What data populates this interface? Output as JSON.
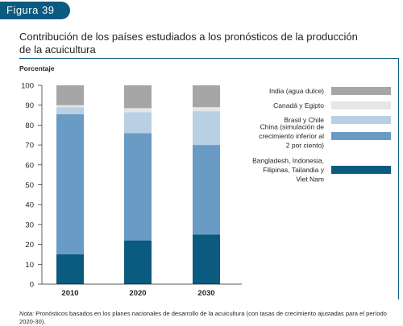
{
  "figure_label": "Figura 39",
  "title": "Contribución de los países estudiados a los pronósticos de la producción de la acuicultura",
  "note": {
    "prefix": "Nota:",
    "text": " Pronósticos basados en los planes nacionales de desarrollo de la acuicultura (con tasas de crecimiento ajustadas para el período 2020-30)."
  },
  "chart_data": {
    "type": "bar",
    "stacked": true,
    "ylabel": "Porcentaje",
    "ylim": [
      0,
      100
    ],
    "yticks": [
      0,
      10,
      20,
      30,
      40,
      50,
      60,
      70,
      80,
      90,
      100
    ],
    "categories": [
      "2010",
      "2020",
      "2030"
    ],
    "grid": false,
    "legend_position": "right",
    "series": [
      {
        "name": "Bangladesh, Indonesia, Filipinas, Tailandia y Viet Nam",
        "legend_lines": [
          "Bangladesh, Indonesia,",
          "Filipinas, Tailandia y",
          "Viet Nam"
        ],
        "color": "#0b5a7f",
        "values": [
          15,
          22,
          25
        ]
      },
      {
        "name": "China (simulación de crecimiento inferior al 2 por ciento)",
        "legend_lines": [
          "China (simulación de",
          "crecimiento inferior al",
          "2 por ciento)"
        ],
        "color": "#6a9bc4",
        "values": [
          70.5,
          54,
          45
        ]
      },
      {
        "name": "Brasil y Chile",
        "legend_lines": [
          "Brasil y Chile"
        ],
        "color": "#b8cfe4",
        "values": [
          3.5,
          10.5,
          17
        ]
      },
      {
        "name": "Canadá y Egipto",
        "legend_lines": [
          "Canadá y Egipto"
        ],
        "color": "#e6e6e6",
        "values": [
          1,
          2,
          2
        ]
      },
      {
        "name": "India (agua dulce)",
        "legend_lines": [
          "India (agua dulce)"
        ],
        "color": "#a6a6a6",
        "values": [
          10,
          11.5,
          11
        ]
      }
    ]
  }
}
